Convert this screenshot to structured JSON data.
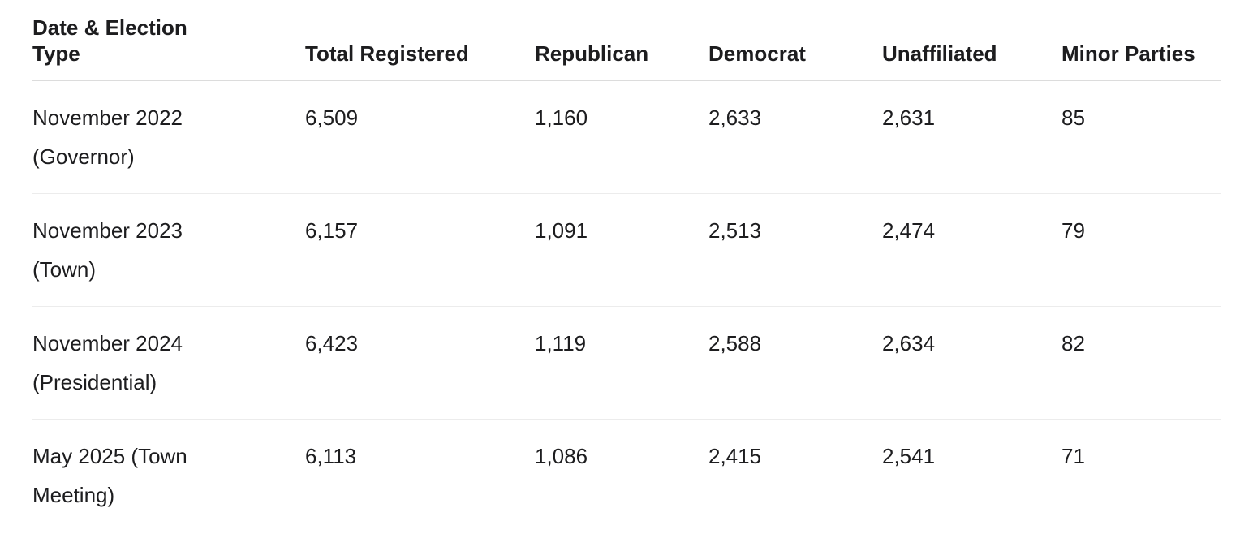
{
  "table": {
    "header": [
      "Date & Election Type",
      "Total Registered",
      "Republican",
      "Democrat",
      "Unaffiliated",
      "Minor Parties"
    ],
    "rows": [
      [
        "November 2022 (Governor)",
        "6,509",
        "1,160",
        "2,633",
        "2,631",
        "85"
      ],
      [
        "November 2023 (Town)",
        "6,157",
        "1,091",
        "2,513",
        "2,474",
        "79"
      ],
      [
        "November 2024 (Presidential)",
        "6,423",
        "1,119",
        "2,588",
        "2,634",
        "82"
      ],
      [
        "May 2025 (Town Meeting)",
        "6,113",
        "1,086",
        "2,415",
        "2,541",
        "71"
      ]
    ]
  }
}
